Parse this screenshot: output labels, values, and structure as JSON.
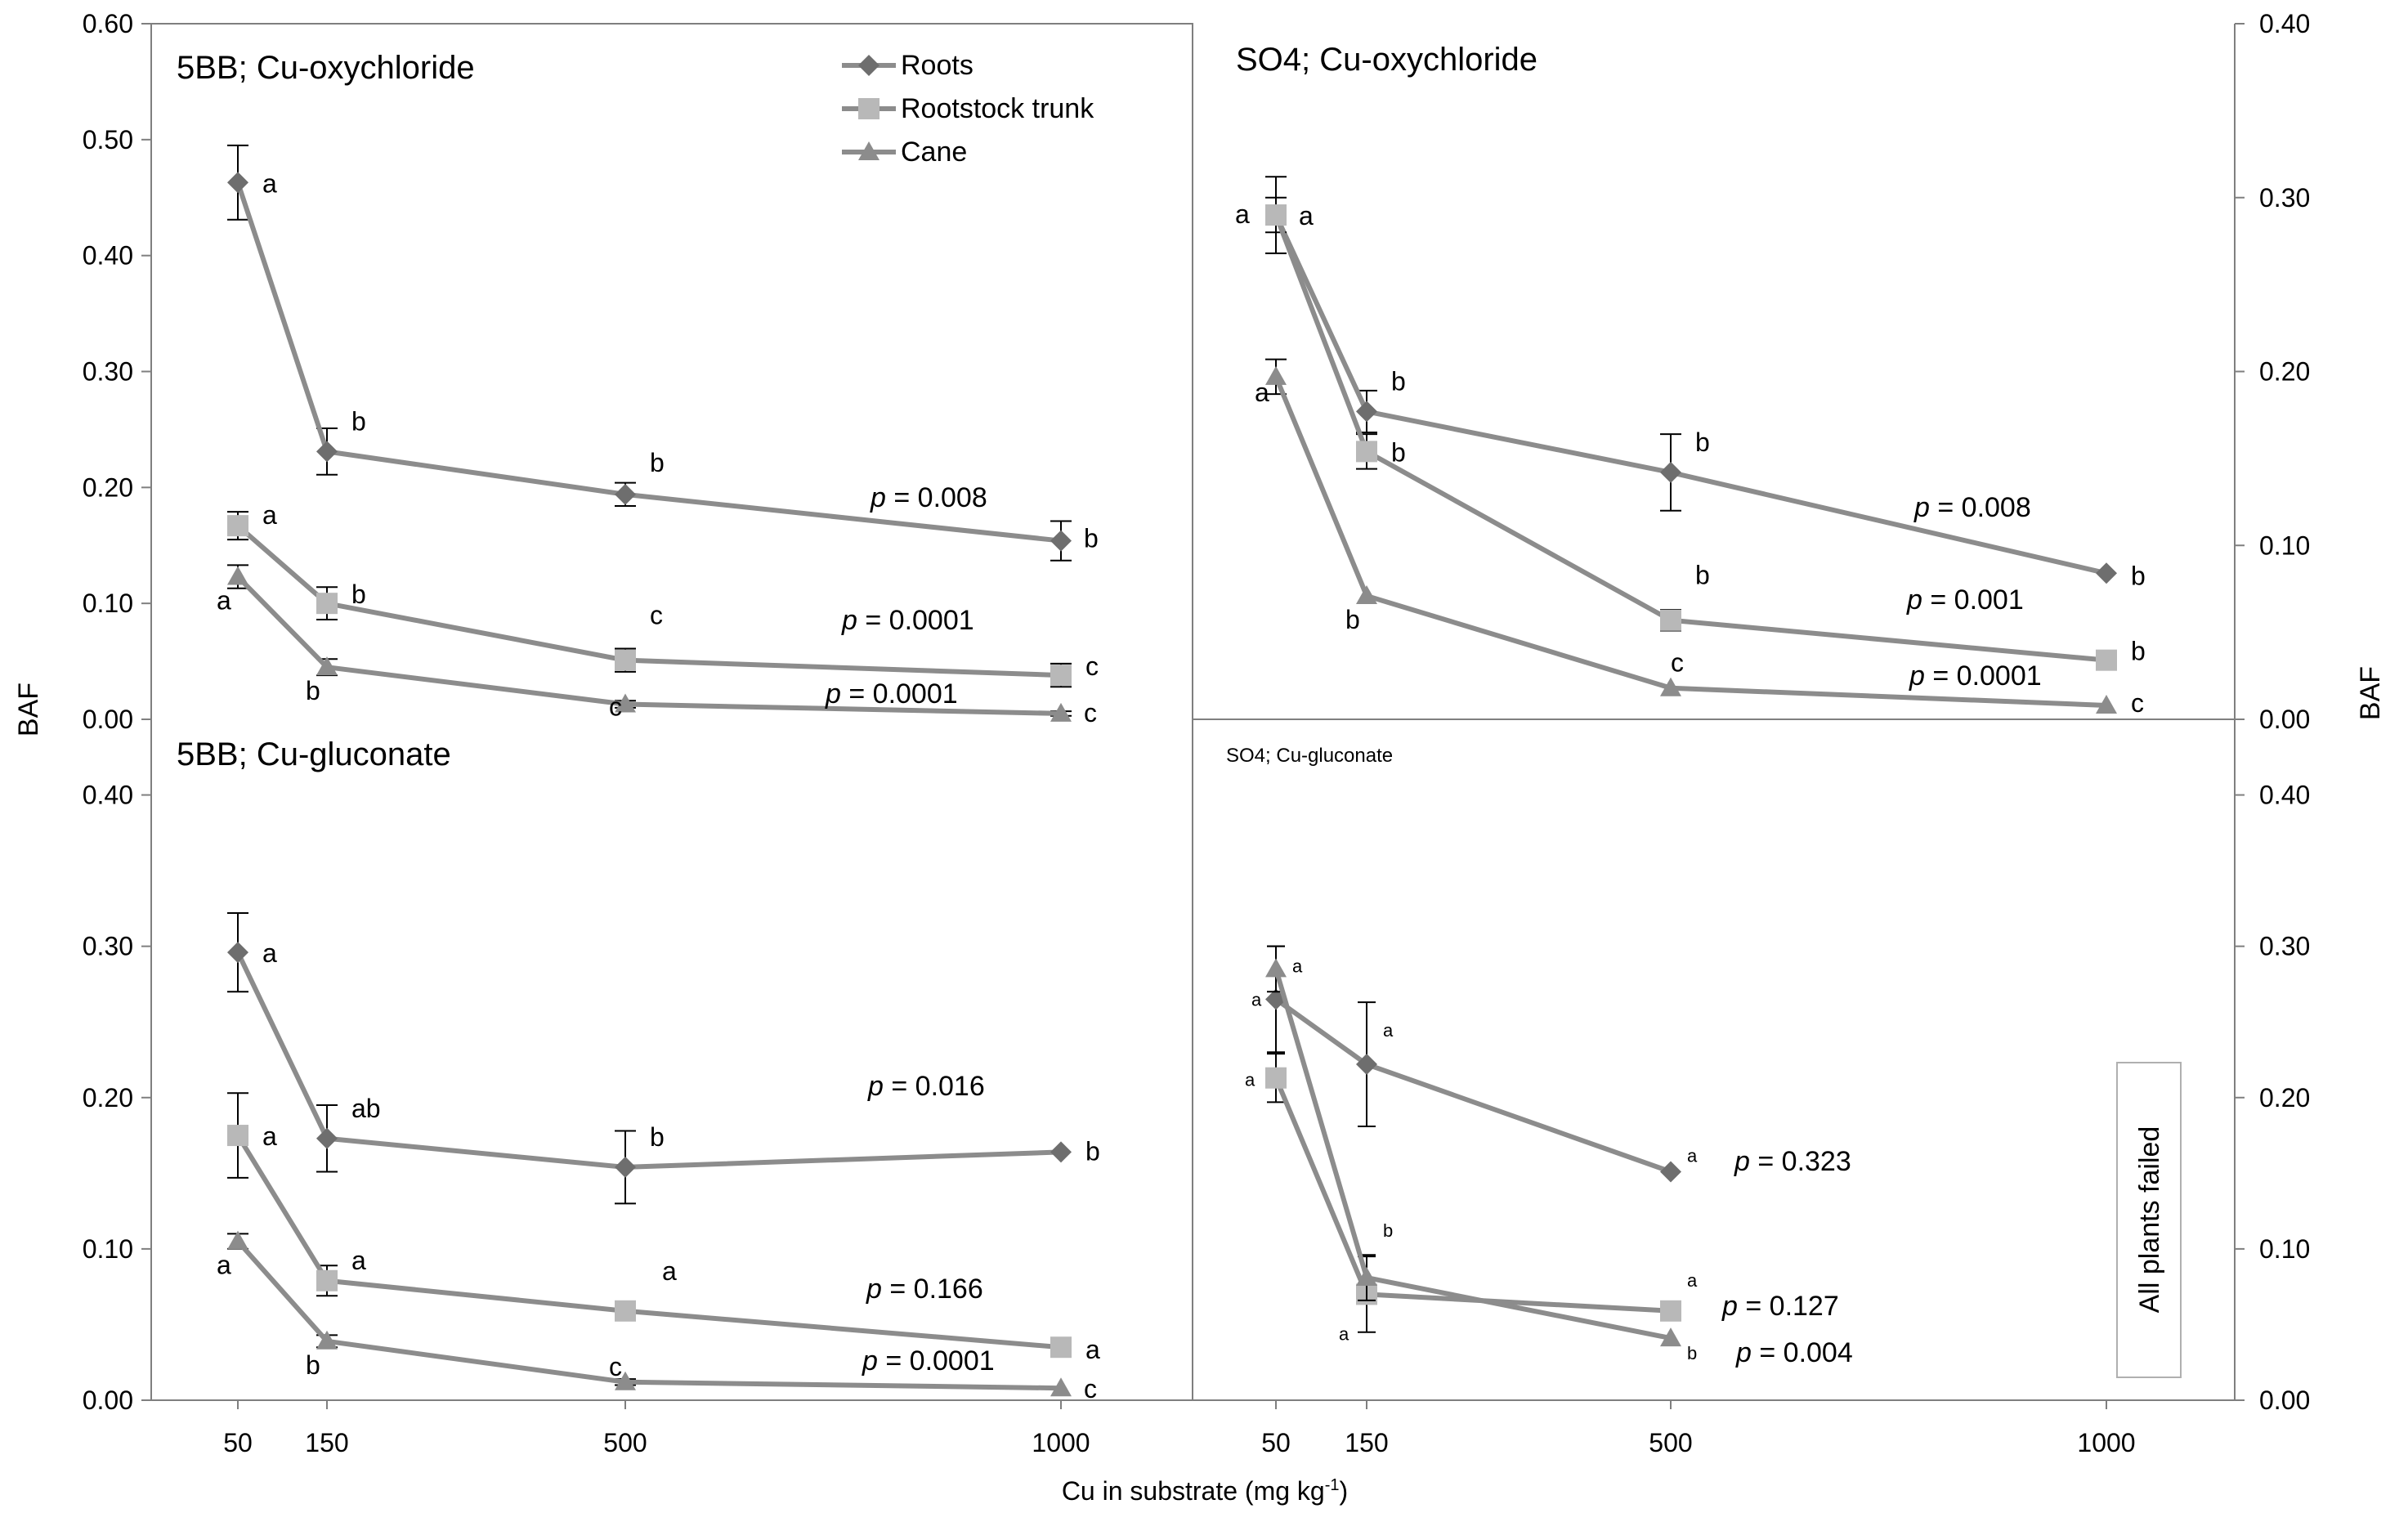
{
  "figure": {
    "ylabel_left": "BAF",
    "ylabel_right": "BAF",
    "xlabel_main": "Cu in substrate (mg kg",
    "xlabel_sup": "-1",
    "xlabel_close": ")",
    "legend": [
      "Roots",
      "Rootstock trunk",
      "Cane"
    ],
    "failed_note": "All plants failed"
  },
  "colors": {
    "roots": "#6e6e6e",
    "trunk": "#b8b8b8",
    "cane": "#8c8c8c",
    "line": "#8c8c8c",
    "axis": "#7f7f7f"
  },
  "chart_data": [
    {
      "type": "line",
      "title": "5BB; Cu-oxychloride",
      "x": [
        50,
        150,
        500,
        1000
      ],
      "xlabel": "Cu in substrate (mg kg-1)",
      "ylabel": "BAF",
      "ylim": [
        0,
        0.6
      ],
      "yticks": [
        "0.00",
        "0.10",
        "0.20",
        "0.30",
        "0.40",
        "0.50",
        "0.60"
      ],
      "series": [
        {
          "name": "Roots",
          "values": [
            0.463,
            0.231,
            0.194,
            0.154
          ],
          "err": [
            0.032,
            0.02,
            0.01,
            0.017
          ],
          "letters": [
            "a",
            "b",
            "b",
            "b"
          ],
          "p": "0.008"
        },
        {
          "name": "Rootstock trunk",
          "values": [
            0.167,
            0.1,
            0.051,
            0.038
          ],
          "err": [
            0.012,
            0.014,
            0.01,
            0.01
          ],
          "letters": [
            "a",
            "b",
            "c",
            "c"
          ],
          "p": "0.0001"
        },
        {
          "name": "Cane",
          "values": [
            0.123,
            0.045,
            0.013,
            0.005
          ],
          "err": [
            0.01,
            0.007,
            0.003,
            0.002
          ],
          "letters": [
            "a",
            "b",
            "c",
            "c"
          ],
          "p": "0.0001"
        }
      ]
    },
    {
      "type": "line",
      "title": "SO4; Cu-oxychloride",
      "x": [
        50,
        150,
        500,
        1000
      ],
      "xlabel": "Cu in substrate (mg kg-1)",
      "ylabel": "BAF",
      "ylim": [
        0,
        0.4
      ],
      "yticks": [
        "0.00",
        "0.10",
        "0.20",
        "0.30",
        "0.40"
      ],
      "series": [
        {
          "name": "Roots",
          "values": [
            0.29,
            0.177,
            0.142,
            0.084
          ],
          "err": [
            0.022,
            0.012,
            0.022,
            0
          ],
          "letters": [
            "a",
            "b",
            "b",
            "b"
          ],
          "p": "0.008"
        },
        {
          "name": "Rootstock trunk",
          "values": [
            0.29,
            0.154,
            0.057,
            0.034
          ],
          "err": [
            0.01,
            0.01,
            0.006,
            0
          ],
          "letters": [
            "a",
            "b",
            "b",
            "b"
          ],
          "p": "0.001"
        },
        {
          "name": "Cane",
          "values": [
            0.197,
            0.071,
            0.018,
            0.008
          ],
          "err": [
            0.01,
            0,
            0,
            0
          ],
          "letters": [
            "a",
            "b",
            "c",
            "c"
          ],
          "p": "0.0001"
        }
      ]
    },
    {
      "type": "line",
      "title": "5BB; Cu-gluconate",
      "x": [
        50,
        150,
        500,
        1000
      ],
      "xlabel": "Cu in substrate (mg kg-1)",
      "ylabel": "BAF",
      "ylim": [
        0,
        0.45
      ],
      "yticks": [
        "0.00",
        "0.10",
        "0.20",
        "0.30",
        "0.40"
      ],
      "series": [
        {
          "name": "Roots",
          "values": [
            0.296,
            0.173,
            0.154,
            0.164
          ],
          "err": [
            0.026,
            0.022,
            0.024,
            0
          ],
          "letters": [
            "a",
            "ab",
            "b",
            "b"
          ],
          "p": "0.016"
        },
        {
          "name": "Rootstock trunk",
          "values": [
            0.175,
            0.079,
            0.059,
            0.035
          ],
          "err": [
            0.028,
            0.01,
            0,
            0
          ],
          "letters": [
            "a",
            "a",
            "a",
            "a"
          ],
          "p": "0.166"
        },
        {
          "name": "Cane",
          "values": [
            0.105,
            0.039,
            0.012,
            0.008
          ],
          "err": [
            0.005,
            0.004,
            0.002,
            0
          ],
          "letters": [
            "a",
            "b",
            "c",
            "c"
          ],
          "p": "0.0001"
        }
      ]
    },
    {
      "type": "line",
      "title": "SO4; Cu-gluconate",
      "x": [
        50,
        150,
        500
      ],
      "xlabel": "Cu in substrate (mg kg-1)",
      "ylabel": "BAF",
      "ylim": [
        0,
        0.45
      ],
      "yticks": [
        "0.00",
        "0.10",
        "0.20",
        "0.30",
        "0.40"
      ],
      "series": [
        {
          "name": "Roots",
          "values": [
            0.265,
            0.222,
            0.151
          ],
          "err": [
            0.035,
            0.041,
            0
          ],
          "letters": [
            "a",
            "a",
            "a"
          ],
          "p": "0.323"
        },
        {
          "name": "Rootstock trunk",
          "values": [
            0.213,
            0.07,
            0.059
          ],
          "err": [
            0.016,
            0.025,
            0
          ],
          "letters": [
            "a",
            "a",
            "a"
          ],
          "p": "0.127"
        },
        {
          "name": "Cane",
          "values": [
            0.285,
            0.081,
            0.041
          ],
          "err": [
            0.015,
            0.015,
            0
          ],
          "letters": [
            "a",
            "b",
            "b"
          ],
          "p": "0.004"
        }
      ]
    }
  ]
}
